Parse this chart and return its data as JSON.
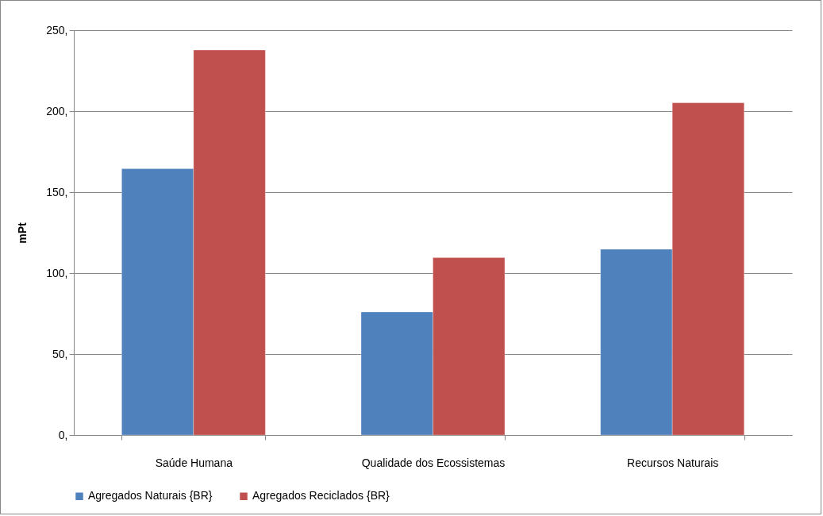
{
  "chart_data": {
    "type": "bar",
    "ylabel": "mPt",
    "categories": [
      "Saúde Humana",
      "Qualidade dos Ecossistemas",
      "Recursos Naturais"
    ],
    "series": [
      {
        "name": "Agregados Naturais {BR}",
        "color": "#4f81bd",
        "values": [
          164.4,
          76,
          114.7
        ]
      },
      {
        "name": "Agregados Reciclados {BR}",
        "color": "#c0504d",
        "values": [
          237.7,
          109.5,
          205.2
        ]
      }
    ],
    "ylim": [
      0,
      250
    ],
    "yticks": [
      {
        "value": 0,
        "label": "0,"
      },
      {
        "value": 50,
        "label": "50,"
      },
      {
        "value": 100,
        "label": "100,"
      },
      {
        "value": 150,
        "label": "150,"
      },
      {
        "value": 200,
        "label": "200,"
      },
      {
        "value": 250,
        "label": "250,"
      }
    ],
    "grid": "y",
    "legend": "bottom"
  }
}
